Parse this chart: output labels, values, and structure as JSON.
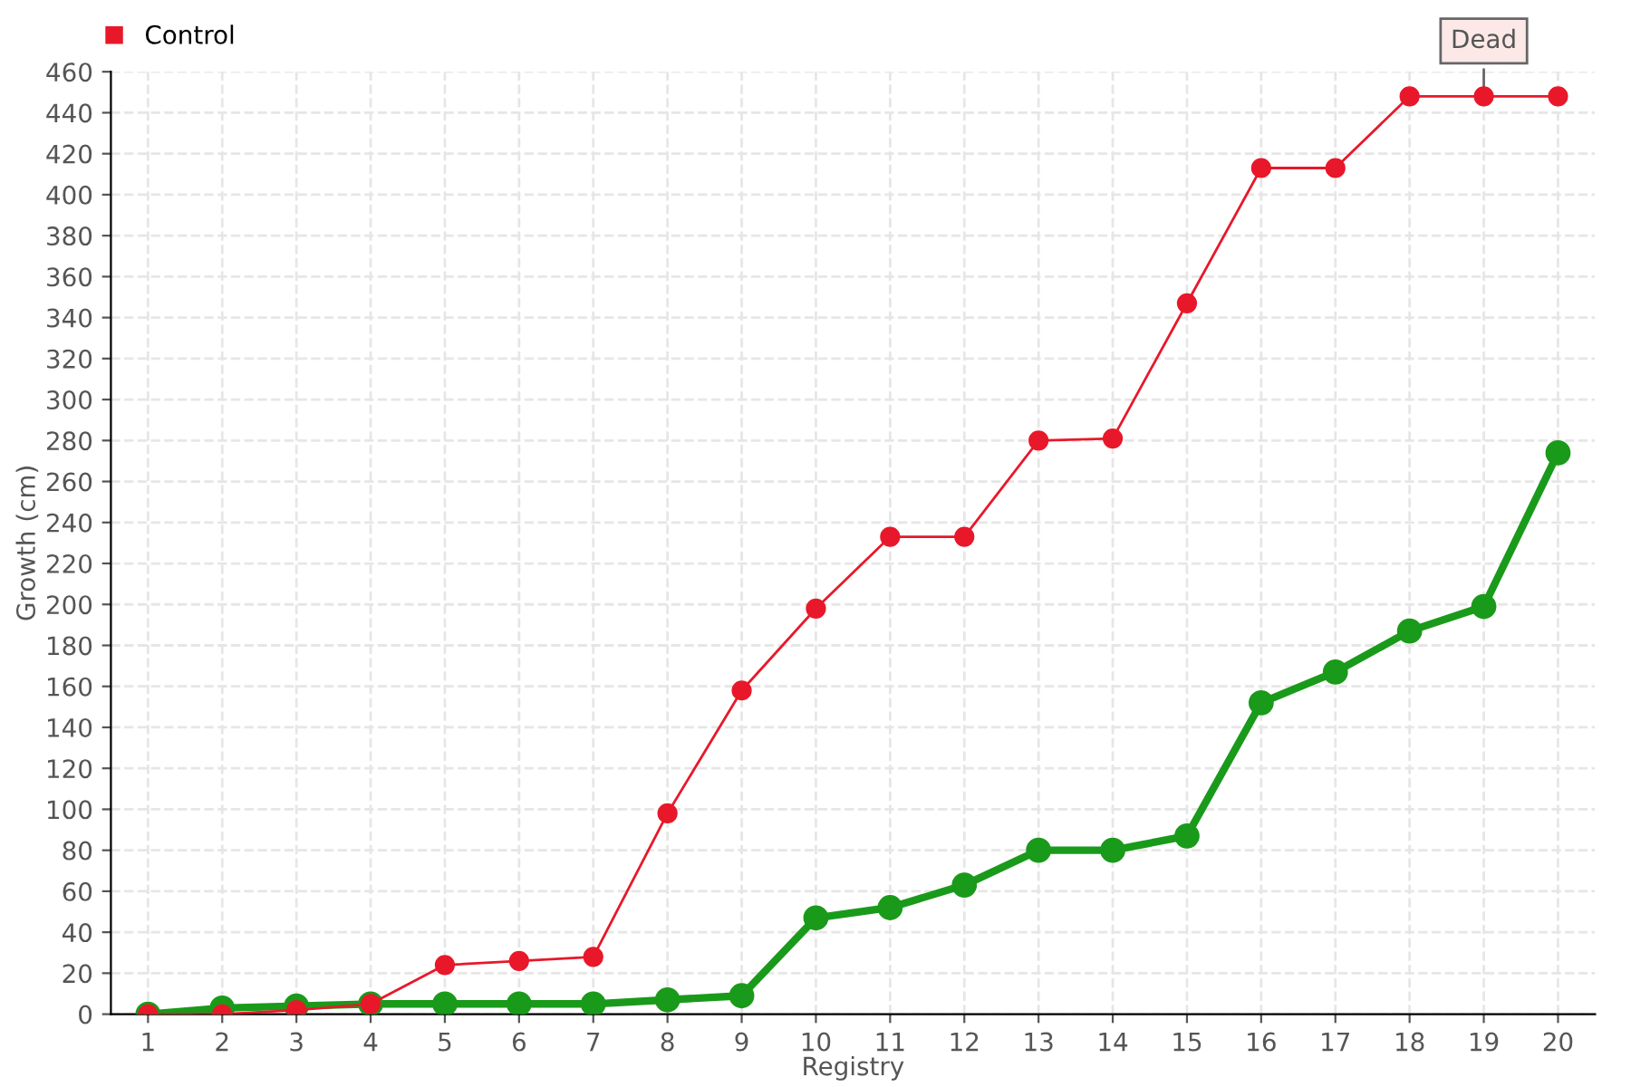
{
  "chart_data": {
    "type": "line",
    "xlabel": "Registry",
    "ylabel": "Growth (cm)",
    "categories": [
      "1",
      "2",
      "3",
      "4",
      "5",
      "6",
      "7",
      "8",
      "9",
      "10",
      "11",
      "12",
      "13",
      "14",
      "15",
      "16",
      "17",
      "18",
      "19",
      "20"
    ],
    "series": [
      {
        "color": "#1a9a1a",
        "values": [
          0,
          3,
          4,
          5,
          5,
          5,
          5,
          7,
          9,
          47,
          52,
          63,
          80,
          80,
          87,
          152,
          167,
          187,
          199,
          274
        ]
      },
      {
        "name": "Control",
        "color": "#e8182a",
        "values": [
          0,
          0,
          2,
          5,
          24,
          26,
          28,
          98,
          158,
          198,
          233,
          233,
          280,
          281,
          347,
          413,
          413,
          448,
          448,
          448
        ]
      }
    ],
    "ylim": [
      0,
      460
    ],
    "yticks": [
      0,
      20,
      40,
      60,
      80,
      100,
      120,
      140,
      160,
      180,
      200,
      220,
      240,
      260,
      280,
      300,
      320,
      340,
      360,
      380,
      400,
      420,
      440,
      460
    ],
    "grid": true,
    "legend": "top left",
    "marker": "circle",
    "line_style": "solid",
    "annotations": [
      {
        "text": "Dead",
        "x": "19",
        "y": 448
      }
    ]
  }
}
